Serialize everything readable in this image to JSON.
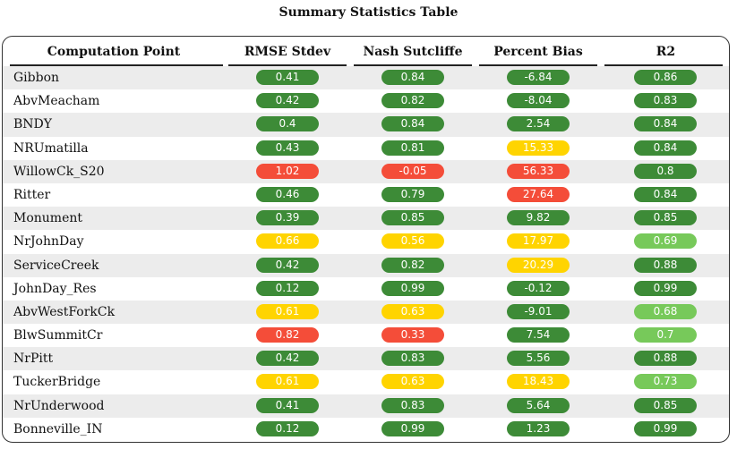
{
  "title": "Summary Statistics Table",
  "headers": [
    "Computation Point",
    "RMSE Stdev",
    "Nash Sutcliffe",
    "Percent Bias",
    "R2"
  ],
  "colors": {
    "good": "#3d8b37",
    "fair": "#77c95a",
    "warn": "#ffd400",
    "bad": "#f44d39",
    "stripe": "#ececec"
  },
  "rows": [
    {
      "name": "Gibbon",
      "values": [
        {
          "v": "0.41",
          "c": "good"
        },
        {
          "v": "0.84",
          "c": "good"
        },
        {
          "v": "-6.84",
          "c": "good"
        },
        {
          "v": "0.86",
          "c": "good"
        }
      ]
    },
    {
      "name": "AbvMeacham",
      "values": [
        {
          "v": "0.42",
          "c": "good"
        },
        {
          "v": "0.82",
          "c": "good"
        },
        {
          "v": "-8.04",
          "c": "good"
        },
        {
          "v": "0.83",
          "c": "good"
        }
      ]
    },
    {
      "name": "BNDY",
      "values": [
        {
          "v": "0.4",
          "c": "good"
        },
        {
          "v": "0.84",
          "c": "good"
        },
        {
          "v": "2.54",
          "c": "good"
        },
        {
          "v": "0.84",
          "c": "good"
        }
      ]
    },
    {
      "name": "NRUmatilla",
      "values": [
        {
          "v": "0.43",
          "c": "good"
        },
        {
          "v": "0.81",
          "c": "good"
        },
        {
          "v": "15.33",
          "c": "warn"
        },
        {
          "v": "0.84",
          "c": "good"
        }
      ]
    },
    {
      "name": "WillowCk_S20",
      "values": [
        {
          "v": "1.02",
          "c": "bad"
        },
        {
          "v": "-0.05",
          "c": "bad"
        },
        {
          "v": "56.33",
          "c": "bad"
        },
        {
          "v": "0.8",
          "c": "good"
        }
      ]
    },
    {
      "name": "Ritter",
      "values": [
        {
          "v": "0.46",
          "c": "good"
        },
        {
          "v": "0.79",
          "c": "good"
        },
        {
          "v": "27.64",
          "c": "bad"
        },
        {
          "v": "0.84",
          "c": "good"
        }
      ]
    },
    {
      "name": "Monument",
      "values": [
        {
          "v": "0.39",
          "c": "good"
        },
        {
          "v": "0.85",
          "c": "good"
        },
        {
          "v": "9.82",
          "c": "good"
        },
        {
          "v": "0.85",
          "c": "good"
        }
      ]
    },
    {
      "name": "NrJohnDay",
      "values": [
        {
          "v": "0.66",
          "c": "warn"
        },
        {
          "v": "0.56",
          "c": "warn"
        },
        {
          "v": "17.97",
          "c": "warn"
        },
        {
          "v": "0.69",
          "c": "fair"
        }
      ]
    },
    {
      "name": "ServiceCreek",
      "values": [
        {
          "v": "0.42",
          "c": "good"
        },
        {
          "v": "0.82",
          "c": "good"
        },
        {
          "v": "20.29",
          "c": "warn"
        },
        {
          "v": "0.88",
          "c": "good"
        }
      ]
    },
    {
      "name": "JohnDay_Res",
      "values": [
        {
          "v": "0.12",
          "c": "good"
        },
        {
          "v": "0.99",
          "c": "good"
        },
        {
          "v": "-0.12",
          "c": "good"
        },
        {
          "v": "0.99",
          "c": "good"
        }
      ]
    },
    {
      "name": "AbvWestForkCk",
      "values": [
        {
          "v": "0.61",
          "c": "warn"
        },
        {
          "v": "0.63",
          "c": "warn"
        },
        {
          "v": "-9.01",
          "c": "good"
        },
        {
          "v": "0.68",
          "c": "fair"
        }
      ]
    },
    {
      "name": "BlwSummitCr",
      "values": [
        {
          "v": "0.82",
          "c": "bad"
        },
        {
          "v": "0.33",
          "c": "bad"
        },
        {
          "v": "7.54",
          "c": "good"
        },
        {
          "v": "0.7",
          "c": "fair"
        }
      ]
    },
    {
      "name": "NrPitt",
      "values": [
        {
          "v": "0.42",
          "c": "good"
        },
        {
          "v": "0.83",
          "c": "good"
        },
        {
          "v": "5.56",
          "c": "good"
        },
        {
          "v": "0.88",
          "c": "good"
        }
      ]
    },
    {
      "name": "TuckerBridge",
      "values": [
        {
          "v": "0.61",
          "c": "warn"
        },
        {
          "v": "0.63",
          "c": "warn"
        },
        {
          "v": "18.43",
          "c": "warn"
        },
        {
          "v": "0.73",
          "c": "fair"
        }
      ]
    },
    {
      "name": "NrUnderwood",
      "values": [
        {
          "v": "0.41",
          "c": "good"
        },
        {
          "v": "0.83",
          "c": "good"
        },
        {
          "v": "5.64",
          "c": "good"
        },
        {
          "v": "0.85",
          "c": "good"
        }
      ]
    },
    {
      "name": "Bonneville_IN",
      "values": [
        {
          "v": "0.12",
          "c": "good"
        },
        {
          "v": "0.99",
          "c": "good"
        },
        {
          "v": "1.23",
          "c": "good"
        },
        {
          "v": "0.99",
          "c": "good"
        }
      ]
    }
  ]
}
